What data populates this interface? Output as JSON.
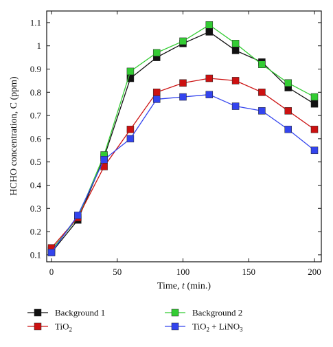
{
  "chart_data": {
    "type": "line",
    "xlabel_parts": [
      "Time, ",
      "t",
      " (min.)"
    ],
    "ylabel": "HCHO concentration, C (ppm)",
    "xlim": [
      0,
      200
    ],
    "ylim": [
      0.07,
      1.15
    ],
    "x_ticks": [
      0,
      50,
      100,
      150,
      200
    ],
    "y_ticks": [
      0.1,
      0.2,
      0.3,
      0.4,
      0.5,
      0.6,
      0.7,
      0.8,
      0.9,
      1,
      1.1
    ],
    "grid": false,
    "legend_position": "bottom",
    "x": [
      0,
      20,
      40,
      60,
      80,
      100,
      120,
      140,
      160,
      180,
      200
    ],
    "series": [
      {
        "name": "Background 1",
        "legend_parts": [
          {
            "t": "Background 1"
          }
        ],
        "color": "#111111",
        "values": [
          0.11,
          0.25,
          0.52,
          0.86,
          0.95,
          1.01,
          1.06,
          0.98,
          0.93,
          0.82,
          0.75
        ]
      },
      {
        "name": "Background 2",
        "legend_parts": [
          {
            "t": "Background 2"
          }
        ],
        "color": "#33cc33",
        "values": [
          0.12,
          0.26,
          0.53,
          0.89,
          0.97,
          1.02,
          1.09,
          1.01,
          0.92,
          0.84,
          0.78
        ]
      },
      {
        "name": "TiO2",
        "legend_parts": [
          {
            "t": "TiO"
          },
          {
            "t": "2",
            "sub": true
          }
        ],
        "color": "#cc1111",
        "values": [
          0.13,
          0.26,
          0.48,
          0.64,
          0.8,
          0.84,
          0.86,
          0.85,
          0.8,
          0.72,
          0.64
        ]
      },
      {
        "name": "TiO2 + LiNO3",
        "legend_parts": [
          {
            "t": "TiO"
          },
          {
            "t": "2",
            "sub": true
          },
          {
            "t": " + LiNO"
          },
          {
            "t": "3",
            "sub": true
          }
        ],
        "color": "#3344ee",
        "values": [
          0.11,
          0.27,
          0.51,
          0.6,
          0.77,
          0.78,
          0.79,
          0.74,
          0.72,
          0.64,
          0.55
        ]
      }
    ]
  }
}
